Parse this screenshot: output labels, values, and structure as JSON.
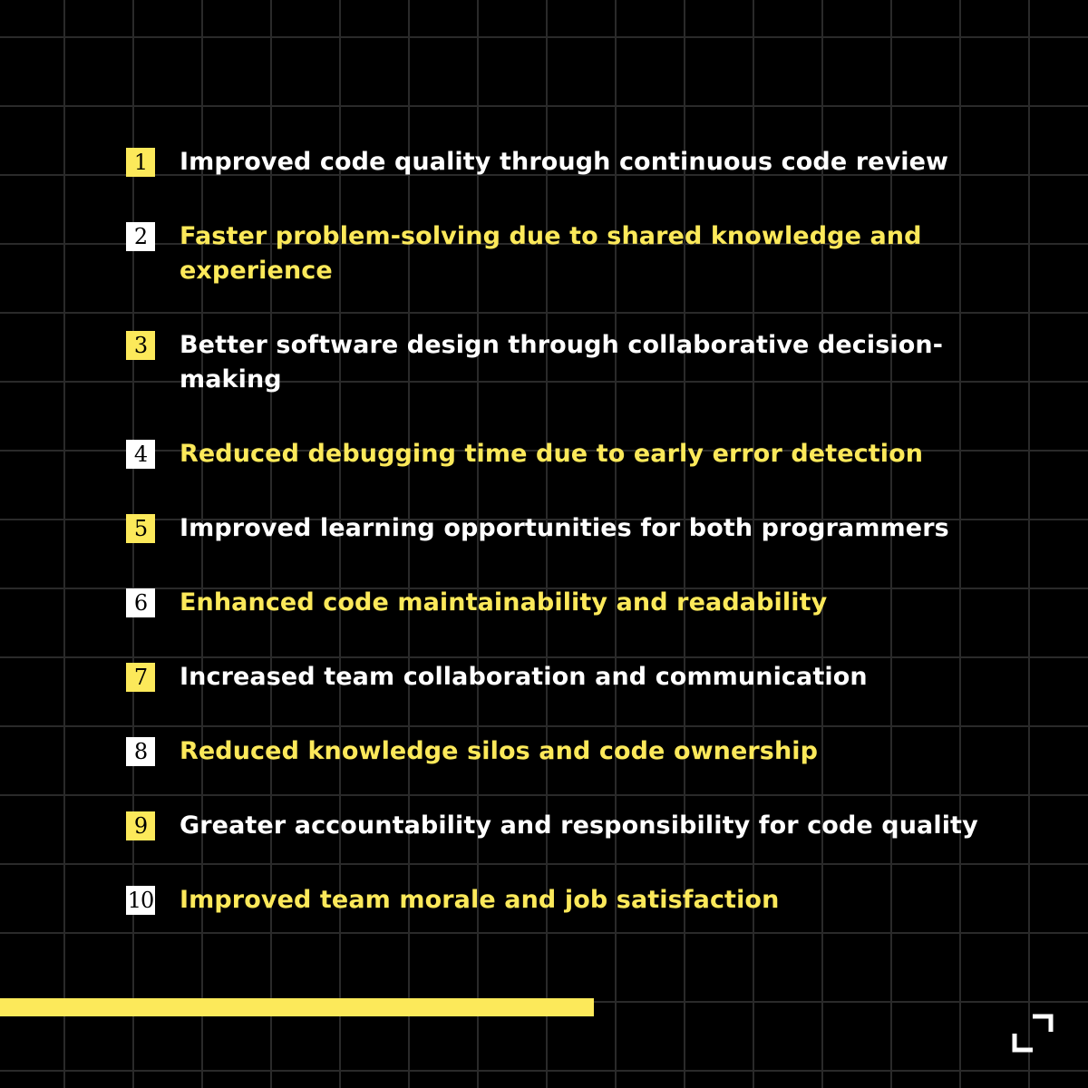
{
  "colors": {
    "background": "#000000",
    "grid_line": "#2a2a2a",
    "accent": "#fce95a",
    "white": "#ffffff"
  },
  "benefits": [
    {
      "number": "1",
      "text": "Improved code quality through continuous code review",
      "badge_color": "#fce95a",
      "text_color": "#ffffff"
    },
    {
      "number": "2",
      "text": "Faster problem-solving due to shared knowledge and experience",
      "badge_color": "#ffffff",
      "text_color": "#fce95a"
    },
    {
      "number": "3",
      "text": "Better software design through collaborative decision-making",
      "badge_color": "#fce95a",
      "text_color": "#ffffff"
    },
    {
      "number": "4",
      "text": "Reduced debugging time due to early error detection",
      "badge_color": "#ffffff",
      "text_color": "#fce95a"
    },
    {
      "number": "5",
      "text": "Improved learning opportunities for both programmers",
      "badge_color": "#fce95a",
      "text_color": "#ffffff"
    },
    {
      "number": "6",
      "text": "Enhanced code maintainability and readability",
      "badge_color": "#ffffff",
      "text_color": "#fce95a"
    },
    {
      "number": "7",
      "text": "Increased team collaboration and communication",
      "badge_color": "#fce95a",
      "text_color": "#ffffff"
    },
    {
      "number": "8",
      "text": "Reduced knowledge silos and code ownership",
      "badge_color": "#ffffff",
      "text_color": "#fce95a"
    },
    {
      "number": "9",
      "text": "Greater accountability and responsibility for code quality",
      "badge_color": "#fce95a",
      "text_color": "#ffffff"
    },
    {
      "number": "10",
      "text": "Improved team morale and job satisfaction",
      "badge_color": "#ffffff",
      "text_color": "#fce95a"
    }
  ],
  "icons": {
    "corner_logo": "corner-brackets-icon"
  }
}
